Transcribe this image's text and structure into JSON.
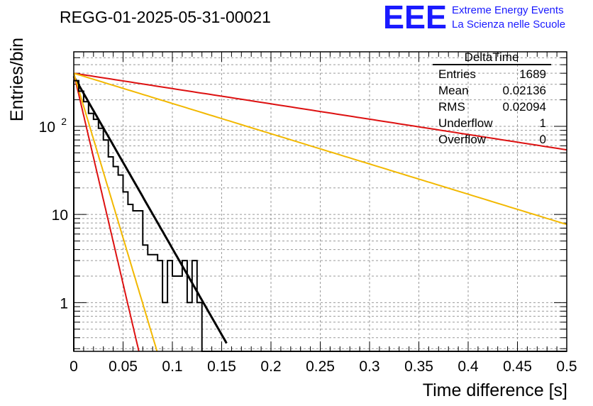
{
  "chart_data": {
    "type": "histogram",
    "title": "REGG-01-2025-05-31-00021",
    "xlabel": "Time difference [s]",
    "ylabel": "Entries/bin",
    "xlim": [
      0,
      0.5
    ],
    "ylim": [
      0.28,
      700
    ],
    "yscale": "log",
    "grid": true,
    "x_tick_labels": [
      "0",
      "0.05",
      "0.1",
      "0.15",
      "0.2",
      "0.25",
      "0.3",
      "0.35",
      "0.4",
      "0.45",
      "0.5"
    ],
    "y_tick_labels": [
      {
        "value": 1,
        "label": "1"
      },
      {
        "value": 10,
        "label": "10"
      },
      {
        "value": 100,
        "label": "10",
        "exponent": "2"
      }
    ],
    "histogram": {
      "bin_width": 0.005,
      "counts": [
        330,
        250,
        190,
        140,
        120,
        95,
        70,
        45,
        35,
        28,
        18,
        13,
        11,
        11,
        4.5,
        3.5,
        3.5,
        3.0,
        1.0,
        3.0,
        2.0,
        2.0,
        3.0,
        1.0,
        3.0,
        1.0,
        0.28,
        0.28,
        0.28,
        0.28,
        0.28,
        0.28,
        0.28,
        0.28,
        0.28,
        0.28,
        0.28,
        0.28,
        0.28,
        0.28,
        0.28,
        0.28,
        0.28,
        0.28,
        0.28,
        0.28,
        0.28,
        0.28,
        0.28,
        0.28,
        0.28,
        0.28,
        0.28,
        0.28,
        0.28,
        0.28,
        0.28,
        0.28,
        0.28,
        0.28,
        0.28,
        0.28,
        0.28,
        0.28,
        0.28,
        0.28,
        0.28,
        0.28,
        0.28,
        0.28,
        0.28,
        0.28,
        0.28,
        0.28,
        0.28,
        0.28,
        0.28,
        0.28,
        0.28,
        0.28,
        0.28,
        0.28,
        0.28,
        0.28,
        0.28,
        0.28,
        0.28,
        0.28,
        0.28,
        0.28,
        0.28,
        0.28,
        0.28,
        0.28,
        0.28,
        0.28,
        0.28,
        0.28,
        0.28,
        0.28
      ],
      "color": "#000000"
    },
    "fits": [
      {
        "amplitude": 370,
        "slope": -45,
        "x_range": [
          0,
          0.155
        ],
        "color": "#000000",
        "width": 3
      },
      {
        "amplitude": 400,
        "slope": -110,
        "x_range": [
          0,
          0.075
        ],
        "color": "#dd1111",
        "width": 2
      },
      {
        "amplitude": 400,
        "slope": -86,
        "x_range": [
          0,
          0.093
        ],
        "color": "#f2b800",
        "width": 2
      },
      {
        "amplitude": 400,
        "slope": -4.0,
        "x_range": [
          0,
          0.5
        ],
        "color": "#dd1111",
        "width": 2
      },
      {
        "amplitude": 400,
        "slope": -7.9,
        "x_range": [
          0,
          0.5
        ],
        "color": "#f2b800",
        "width": 2
      }
    ]
  },
  "logo": {
    "mark": "EEE",
    "line1": "Extreme Energy Events",
    "line2": "La Scienza nelle Scuole"
  },
  "stats": {
    "title": "DeltaTime",
    "rows": [
      {
        "label": "Entries",
        "value": "1689"
      },
      {
        "label": "Mean",
        "value": "0.02136"
      },
      {
        "label": "RMS",
        "value": "0.02094"
      },
      {
        "label": "Underflow",
        "value": "1"
      },
      {
        "label": "Overflow",
        "value": "0"
      }
    ]
  }
}
